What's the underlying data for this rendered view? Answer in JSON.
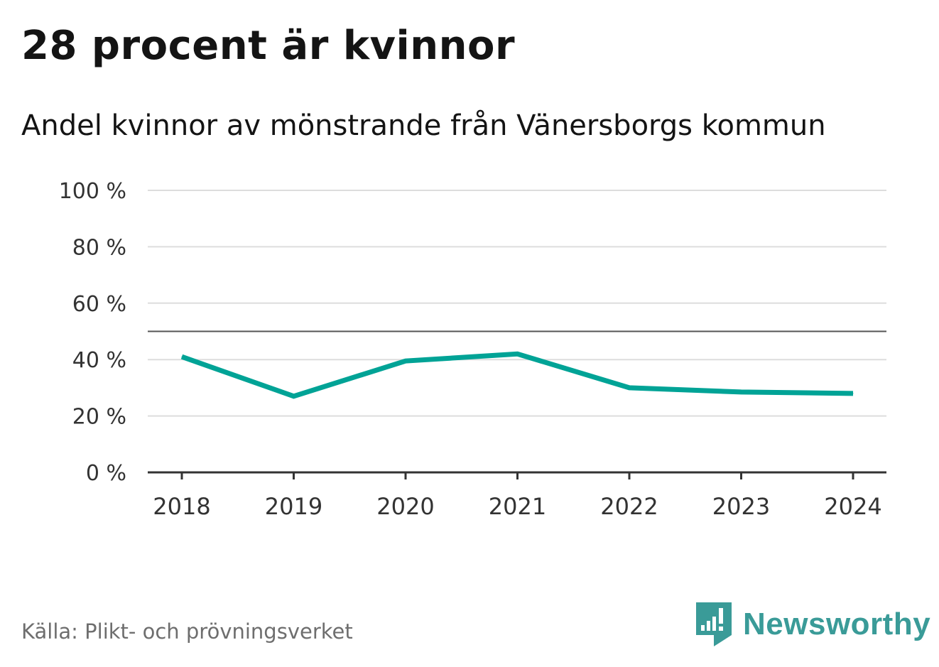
{
  "title": "28 procent är kvinnor",
  "subtitle": "Andel kvinnor av mönstrande från Vänersborgs kommun",
  "source": "Källa: Plikt- och prövningsverket",
  "brand": {
    "name": "Newsworthy",
    "color": "#3a9b98",
    "icon": "newsworthy-logo-icon"
  },
  "colors": {
    "line": "#00a396",
    "grid": "#dddddd",
    "reference": "#555555",
    "axis": "#333333"
  },
  "chart_data": {
    "type": "line",
    "categories": [
      "2018",
      "2019",
      "2020",
      "2021",
      "2022",
      "2023",
      "2024"
    ],
    "series": [
      {
        "values": [
          41,
          27,
          39.5,
          42,
          30,
          28.5,
          28
        ]
      }
    ],
    "ylim": [
      0,
      100
    ],
    "yticks": [
      0,
      20,
      40,
      60,
      80,
      100
    ],
    "ytick_labels": [
      "0 %",
      "20 %",
      "40 %",
      "60 %",
      "80 %",
      "100 %"
    ],
    "reference_line": 50,
    "grid": true,
    "legend": "none"
  }
}
